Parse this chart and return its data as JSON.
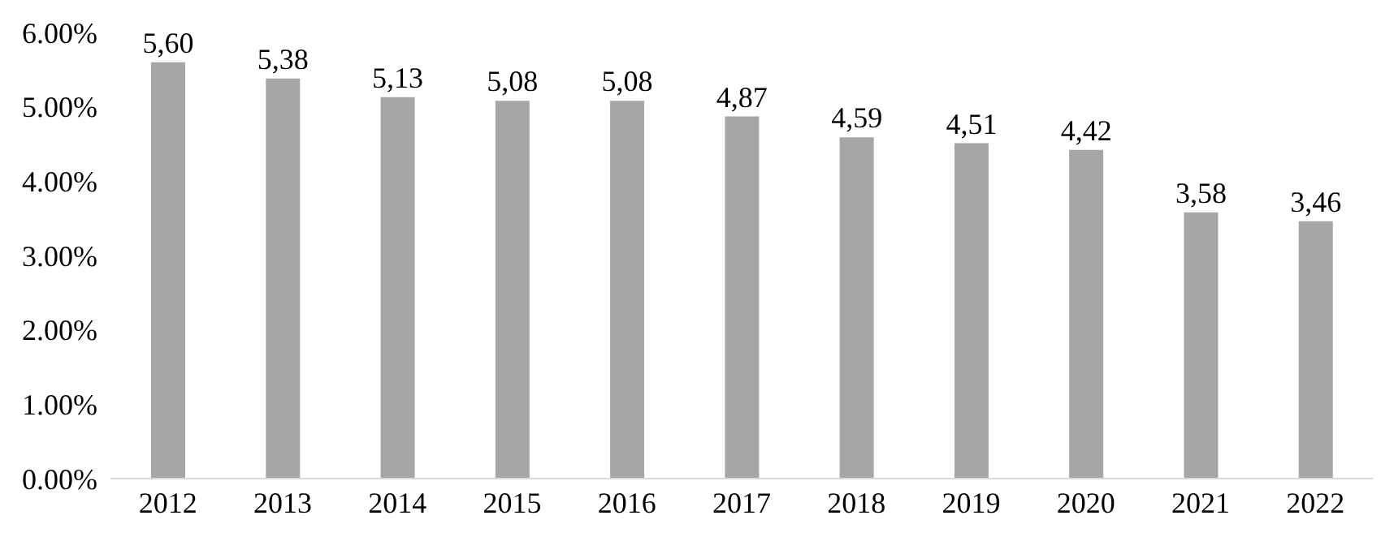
{
  "chart_data": {
    "type": "bar",
    "categories": [
      "2012",
      "2013",
      "2014",
      "2015",
      "2016",
      "2017",
      "2018",
      "2019",
      "2020",
      "2021",
      "2022"
    ],
    "values": [
      5.6,
      5.38,
      5.13,
      5.08,
      5.08,
      4.87,
      4.59,
      4.51,
      4.42,
      3.58,
      3.46
    ],
    "value_labels": [
      "5,60",
      "5,38",
      "5,13",
      "5,08",
      "5,08",
      "4,87",
      "4,59",
      "4,51",
      "4,42",
      "3,58",
      "3,46"
    ],
    "color": "#a6a6a6",
    "ylim": [
      0,
      6
    ],
    "yticks": [
      {
        "value": 0,
        "label": "0.00%"
      },
      {
        "value": 1,
        "label": "1.00%"
      },
      {
        "value": 2,
        "label": "2.00%"
      },
      {
        "value": 3,
        "label": "3.00%"
      },
      {
        "value": 4,
        "label": "4.00%"
      },
      {
        "value": 5,
        "label": "5.00%"
      },
      {
        "value": 6,
        "label": "6.00%"
      }
    ],
    "grid": false,
    "legend": false
  }
}
